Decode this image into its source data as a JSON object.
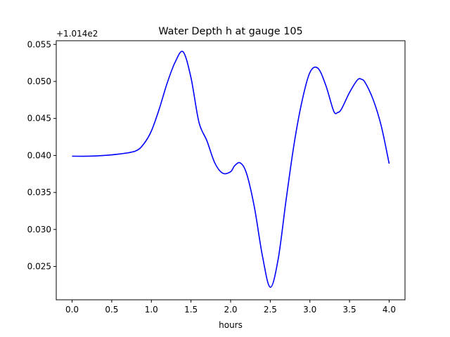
{
  "chart_data": {
    "type": "line",
    "title": "Water Depth h at gauge 105",
    "xlabel": "hours",
    "ylabel": "",
    "y_offset_label": "+1.014e2",
    "xlim": [
      -0.2,
      4.2
    ],
    "ylim": [
      0.0205,
      0.0555
    ],
    "x_ticks": [
      0.0,
      0.5,
      1.0,
      1.5,
      2.0,
      2.5,
      3.0,
      3.5,
      4.0
    ],
    "x_tick_labels": [
      "0.0",
      "0.5",
      "1.0",
      "1.5",
      "2.0",
      "2.5",
      "3.0",
      "3.5",
      "4.0"
    ],
    "y_ticks": [
      0.025,
      0.03,
      0.035,
      0.04,
      0.045,
      0.05,
      0.055
    ],
    "y_tick_labels": [
      "0.025",
      "0.030",
      "0.035",
      "0.040",
      "0.045",
      "0.050",
      "0.055"
    ],
    "grid": false,
    "series": [
      {
        "color": "#0000ff",
        "x": [
          0.0,
          0.2,
          0.4,
          0.6,
          0.8,
          0.9,
          1.0,
          1.1,
          1.2,
          1.3,
          1.4,
          1.5,
          1.6,
          1.7,
          1.8,
          1.9,
          2.0,
          2.05,
          2.12,
          2.2,
          2.3,
          2.4,
          2.5,
          2.6,
          2.7,
          2.8,
          2.9,
          3.0,
          3.1,
          3.2,
          3.3,
          3.35,
          3.4,
          3.5,
          3.6,
          3.65,
          3.7,
          3.8,
          3.9,
          4.0
        ],
        "y": [
          0.0399,
          0.0399,
          0.04,
          0.0402,
          0.0406,
          0.0415,
          0.0433,
          0.0463,
          0.0498,
          0.0526,
          0.054,
          0.0505,
          0.0445,
          0.042,
          0.039,
          0.0376,
          0.0378,
          0.0386,
          0.039,
          0.0376,
          0.033,
          0.0265,
          0.0222,
          0.026,
          0.034,
          0.0415,
          0.0473,
          0.0512,
          0.0518,
          0.0495,
          0.046,
          0.0458,
          0.0463,
          0.0485,
          0.0502,
          0.0503,
          0.0498,
          0.0475,
          0.044,
          0.0389
        ]
      }
    ]
  }
}
